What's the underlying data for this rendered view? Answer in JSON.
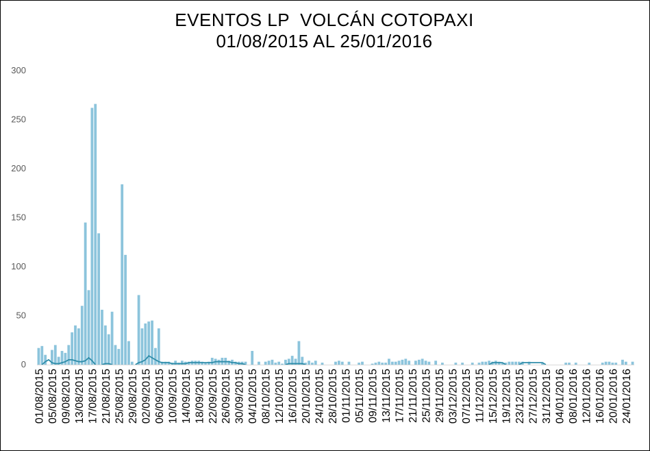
{
  "chart_data": {
    "type": "bar",
    "title": "EVENTOS LP  VOLCÁN COTOPAXI",
    "subtitle": "01/08/2015 AL 25/01/2016",
    "xlabel": "",
    "ylabel": "",
    "ylim": [
      0,
      300
    ],
    "yticks": [
      0,
      50,
      100,
      150,
      200,
      250,
      300
    ],
    "grid": false,
    "legend": "none",
    "start_date": "01/08/2015",
    "end_date": "25/01/2016",
    "x_tick_labels": [
      "01/08/2015",
      "05/08/2015",
      "09/08/2015",
      "13/08/2015",
      "17/08/2015",
      "21/08/2015",
      "25/08/2015",
      "29/08/2015",
      "02/09/2015",
      "06/09/2015",
      "10/09/2015",
      "14/09/2015",
      "18/09/2015",
      "22/09/2015",
      "26/09/2015",
      "30/09/2015",
      "04/10/2015",
      "08/10/2015",
      "12/10/2015",
      "16/10/2015",
      "20/10/2015",
      "24/10/2015",
      "28/10/2015",
      "01/11/2015",
      "05/11/2015",
      "09/11/2015",
      "13/11/2015",
      "17/11/2015",
      "21/11/2015",
      "25/11/2015",
      "29/11/2015",
      "03/12/2015",
      "07/12/2015",
      "11/12/2015",
      "15/12/2015",
      "19/12/2015",
      "23/12/2015",
      "27/12/2015",
      "31/12/2015",
      "04/01/2016",
      "08/01/2016",
      "12/01/2016",
      "16/01/2016",
      "20/01/2016",
      "24/01/2016"
    ],
    "bar_color": "#8cc4dc",
    "line_color": "#2e8ca8",
    "series": [
      {
        "type": "bar",
        "values": [
          17,
          19,
          10,
          0,
          15,
          20,
          8,
          14,
          12,
          20,
          33,
          40,
          37,
          60,
          145,
          76,
          262,
          266,
          134,
          56,
          40,
          31,
          54,
          20,
          16,
          184,
          112,
          24,
          3,
          0,
          71,
          37,
          42,
          44,
          45,
          17,
          37,
          3,
          3,
          3,
          2,
          4,
          2,
          4,
          3,
          3,
          4,
          4,
          4,
          3,
          2,
          3,
          7,
          6,
          5,
          7,
          7,
          4,
          5,
          3,
          3,
          3,
          3,
          0,
          14,
          0,
          3,
          0,
          3,
          4,
          5,
          2,
          3,
          1,
          5,
          6,
          9,
          6,
          24,
          8,
          2,
          4,
          2,
          4,
          0,
          2,
          0,
          0,
          0,
          3,
          4,
          3,
          0,
          3,
          0,
          0,
          2,
          3,
          0,
          0,
          1,
          2,
          3,
          2,
          2,
          6,
          3,
          3,
          4,
          5,
          6,
          4,
          0,
          4,
          5,
          6,
          4,
          3,
          0,
          4,
          0,
          2,
          0,
          0,
          0,
          2,
          0,
          2,
          0,
          0,
          2,
          0,
          2,
          3,
          3,
          4,
          3,
          4,
          3,
          2,
          2,
          3,
          3,
          3,
          3,
          3,
          0,
          3,
          0,
          0,
          0,
          2,
          0,
          0,
          0,
          0,
          0,
          0,
          2,
          2,
          0,
          2,
          0,
          0,
          0,
          2,
          0,
          0,
          0,
          2,
          3,
          3,
          2,
          2,
          0,
          5,
          3,
          0,
          3
        ]
      },
      {
        "type": "line",
        "values": [
          0,
          0,
          3,
          5,
          2,
          1,
          1,
          2,
          3,
          5,
          5,
          4,
          3,
          3,
          4,
          7,
          4,
          0,
          0,
          0,
          1,
          1,
          0,
          0,
          0,
          0,
          0,
          0,
          0,
          0,
          2,
          3,
          5,
          9,
          7,
          5,
          3,
          2,
          2,
          2,
          1,
          1,
          1,
          1,
          1,
          2,
          2,
          2,
          2,
          2,
          2,
          2,
          2,
          3,
          3,
          3,
          3,
          3,
          2,
          2,
          1,
          1,
          0,
          0,
          0,
          0,
          0,
          0,
          0,
          0,
          0,
          0,
          0,
          0,
          0,
          1,
          1,
          1,
          1,
          1,
          0,
          0,
          0,
          0,
          0,
          0,
          0,
          0,
          0,
          0,
          0,
          0,
          0,
          0,
          0,
          0,
          0,
          0,
          0,
          0,
          0,
          0,
          0,
          0,
          0,
          0,
          0,
          0,
          0,
          0,
          0,
          0,
          0,
          0,
          0,
          0,
          0,
          0,
          0,
          0,
          0,
          0,
          0,
          0,
          0,
          0,
          0,
          0,
          0,
          0,
          0,
          0,
          0,
          0,
          0,
          0,
          2,
          2,
          2,
          2,
          0,
          0,
          0,
          0,
          0,
          2,
          2,
          2,
          2,
          2,
          2,
          2,
          0,
          0,
          0,
          0,
          0,
          0,
          0,
          0,
          0,
          0,
          0,
          0,
          0,
          0,
          0,
          0,
          0,
          0,
          0,
          0,
          0,
          0,
          0,
          0,
          0,
          0,
          0
        ]
      }
    ]
  }
}
